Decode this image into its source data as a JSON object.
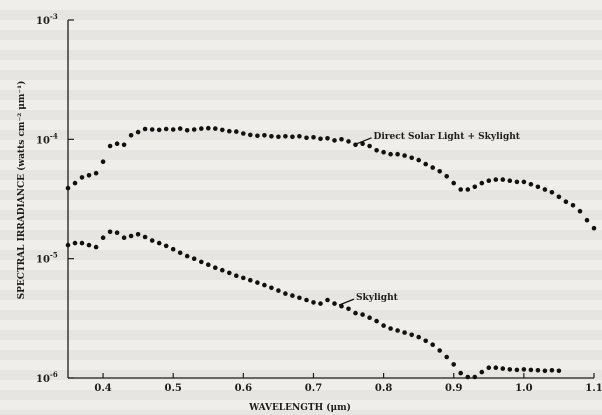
{
  "chart_data": {
    "type": "scatter",
    "xlabel": "WAVELENGTH (μm)",
    "ylabel": "SPECTRAL IRRADIANCE (watts cm⁻² μm⁻¹)",
    "xlim": [
      0.35,
      1.1
    ],
    "ylim": [
      1e-06,
      0.001
    ],
    "yscale": "log",
    "x_ticks": [
      "0.4",
      "0.5",
      "0.6",
      "0.7",
      "0.8",
      "0.9",
      "1.0",
      "1.1"
    ],
    "x_tick_values": [
      0.4,
      0.5,
      0.6,
      0.7,
      0.8,
      0.9,
      1.0,
      1.1
    ],
    "y_ticks": [
      {
        "value": 0.001,
        "base": "10",
        "exp": "-3"
      },
      {
        "value": 0.0001,
        "base": "10",
        "exp": "-4"
      },
      {
        "value": 1e-05,
        "base": "10",
        "exp": "-5"
      },
      {
        "value": 1e-06,
        "base": "10",
        "exp": "-6"
      }
    ],
    "grid": false,
    "marker_color": "#111111",
    "series": [
      {
        "name": "Direct Solar Light + Skylight",
        "x": [
          0.35,
          0.36,
          0.37,
          0.38,
          0.39,
          0.4,
          0.41,
          0.42,
          0.43,
          0.44,
          0.45,
          0.46,
          0.47,
          0.48,
          0.49,
          0.5,
          0.51,
          0.52,
          0.53,
          0.54,
          0.55,
          0.56,
          0.57,
          0.58,
          0.59,
          0.6,
          0.61,
          0.62,
          0.63,
          0.64,
          0.65,
          0.66,
          0.67,
          0.68,
          0.69,
          0.7,
          0.71,
          0.72,
          0.73,
          0.74,
          0.75,
          0.76,
          0.77,
          0.78,
          0.79,
          0.8,
          0.81,
          0.82,
          0.83,
          0.84,
          0.85,
          0.86,
          0.87,
          0.88,
          0.89,
          0.9,
          0.91,
          0.92,
          0.93,
          0.94,
          0.95,
          0.96,
          0.97,
          0.98,
          0.99,
          1.0,
          1.01,
          1.02,
          1.03,
          1.04,
          1.05,
          1.06,
          1.07,
          1.08,
          1.09,
          1.1
        ],
        "y": [
          3.9e-05,
          4.3e-05,
          4.8e-05,
          5e-05,
          5.2e-05,
          6.5e-05,
          8.8e-05,
          9.2e-05,
          9e-05,
          0.000108,
          0.000115,
          0.000122,
          0.000121,
          0.00012,
          0.000122,
          0.000121,
          0.000123,
          0.000119,
          0.000121,
          0.000123,
          0.000124,
          0.000123,
          0.00012,
          0.000117,
          0.000116,
          0.000112,
          0.000109,
          0.000107,
          0.000108,
          0.000106,
          0.000105,
          0.000106,
          0.000105,
          0.000106,
          0.000103,
          0.000104,
          0.000101,
          0.000102,
          9.8e-05,
          0.0001,
          9.6e-05,
          9e-05,
          9.2e-05,
          8.8e-05,
          8.1e-05,
          7.8e-05,
          7.5e-05,
          7.5e-05,
          7.3e-05,
          7e-05,
          6.7e-05,
          6.2e-05,
          5.8e-05,
          5.4e-05,
          4.9e-05,
          4.3e-05,
          3.8e-05,
          3.8e-05,
          4e-05,
          4.3e-05,
          4.5e-05,
          4.6e-05,
          4.6e-05,
          4.5e-05,
          4.4e-05,
          4.4e-05,
          4.2e-05,
          4e-05,
          3.8e-05,
          3.6e-05,
          3.3e-05,
          3e-05,
          2.8e-05,
          2.5e-05,
          2.1e-05,
          1.8e-05
        ]
      },
      {
        "name": "Skylight",
        "x": [
          0.35,
          0.36,
          0.37,
          0.38,
          0.39,
          0.4,
          0.41,
          0.42,
          0.43,
          0.44,
          0.45,
          0.46,
          0.47,
          0.48,
          0.49,
          0.5,
          0.51,
          0.52,
          0.53,
          0.54,
          0.55,
          0.56,
          0.57,
          0.58,
          0.59,
          0.6,
          0.61,
          0.62,
          0.63,
          0.64,
          0.65,
          0.66,
          0.67,
          0.68,
          0.69,
          0.7,
          0.71,
          0.72,
          0.73,
          0.74,
          0.75,
          0.76,
          0.77,
          0.78,
          0.79,
          0.8,
          0.81,
          0.82,
          0.83,
          0.84,
          0.85,
          0.86,
          0.87,
          0.88,
          0.89,
          0.9,
          0.91,
          0.92,
          0.93,
          0.94,
          0.95,
          0.96,
          0.97,
          0.98,
          0.99,
          1.0,
          1.01,
          1.02,
          1.03,
          1.04,
          1.05
        ],
        "y": [
          1.3e-05,
          1.35e-05,
          1.35e-05,
          1.3e-05,
          1.25e-05,
          1.5e-05,
          1.68e-05,
          1.65e-05,
          1.5e-05,
          1.55e-05,
          1.6e-05,
          1.52e-05,
          1.42e-05,
          1.35e-05,
          1.28e-05,
          1.2e-05,
          1.12e-05,
          1.05e-05,
          1e-05,
          9.4e-06,
          8.9e-06,
          8.4e-06,
          8e-06,
          7.6e-06,
          7.2e-06,
          6.9e-06,
          6.6e-06,
          6.3e-06,
          6e-06,
          5.7e-06,
          5.4e-06,
          5.1e-06,
          4.9e-06,
          4.7e-06,
          4.5e-06,
          4.3e-06,
          4.2e-06,
          4.5e-06,
          4.2e-06,
          4e-06,
          3.8e-06,
          3.5e-06,
          3.4e-06,
          3.2e-06,
          3e-06,
          2.75e-06,
          2.6e-06,
          2.5e-06,
          2.4e-06,
          2.3e-06,
          2.2e-06,
          2.05e-06,
          1.9e-06,
          1.7e-06,
          1.5e-06,
          1.3e-06,
          1.1e-06,
          1.02e-06,
          1.02e-06,
          1.12e-06,
          1.22e-06,
          1.22e-06,
          1.2e-06,
          1.18e-06,
          1.17e-06,
          1.18e-06,
          1.17e-06,
          1.16e-06,
          1.15e-06,
          1.16e-06,
          1.15e-06
        ]
      }
    ],
    "annotations": [
      {
        "text": "Direct Solar Light + Skylight",
        "x": 0.76,
        "y": 9e-05
      },
      {
        "text": "Skylight",
        "x": 0.735,
        "y": 4e-06
      }
    ]
  }
}
